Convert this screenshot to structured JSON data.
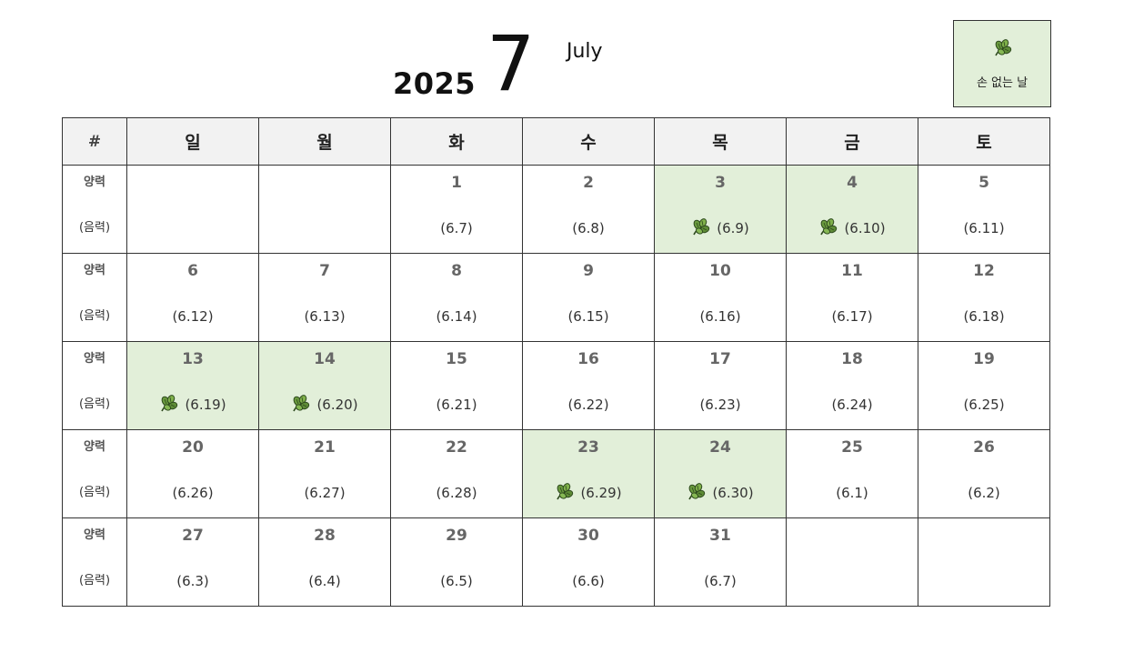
{
  "header": {
    "year": "2025",
    "month_number": "7",
    "month_name": "July"
  },
  "legend": {
    "icon": "leaf-icon",
    "label": "손 없는 날",
    "highlight_color": "#e2efd9"
  },
  "calendar": {
    "corner_label": "#",
    "weekdays": [
      "일",
      "월",
      "화",
      "수",
      "목",
      "금",
      "토"
    ],
    "solar_row_label": "양력",
    "lunar_row_label": "(음력)",
    "weeks": [
      [
        {
          "solar": "",
          "lunar": "",
          "son_eomneun_nal": false
        },
        {
          "solar": "",
          "lunar": "",
          "son_eomneun_nal": false
        },
        {
          "solar": "1",
          "lunar": "(6.7)",
          "son_eomneun_nal": false
        },
        {
          "solar": "2",
          "lunar": "(6.8)",
          "son_eomneun_nal": false
        },
        {
          "solar": "3",
          "lunar": "(6.9)",
          "son_eomneun_nal": true
        },
        {
          "solar": "4",
          "lunar": "(6.10)",
          "son_eomneun_nal": true
        },
        {
          "solar": "5",
          "lunar": "(6.11)",
          "son_eomneun_nal": false
        }
      ],
      [
        {
          "solar": "6",
          "lunar": "(6.12)",
          "son_eomneun_nal": false
        },
        {
          "solar": "7",
          "lunar": "(6.13)",
          "son_eomneun_nal": false
        },
        {
          "solar": "8",
          "lunar": "(6.14)",
          "son_eomneun_nal": false
        },
        {
          "solar": "9",
          "lunar": "(6.15)",
          "son_eomneun_nal": false
        },
        {
          "solar": "10",
          "lunar": "(6.16)",
          "son_eomneun_nal": false
        },
        {
          "solar": "11",
          "lunar": "(6.17)",
          "son_eomneun_nal": false
        },
        {
          "solar": "12",
          "lunar": "(6.18)",
          "son_eomneun_nal": false
        }
      ],
      [
        {
          "solar": "13",
          "lunar": "(6.19)",
          "son_eomneun_nal": true
        },
        {
          "solar": "14",
          "lunar": "(6.20)",
          "son_eomneun_nal": true
        },
        {
          "solar": "15",
          "lunar": "(6.21)",
          "son_eomneun_nal": false
        },
        {
          "solar": "16",
          "lunar": "(6.22)",
          "son_eomneun_nal": false
        },
        {
          "solar": "17",
          "lunar": "(6.23)",
          "son_eomneun_nal": false
        },
        {
          "solar": "18",
          "lunar": "(6.24)",
          "son_eomneun_nal": false
        },
        {
          "solar": "19",
          "lunar": "(6.25)",
          "son_eomneun_nal": false
        }
      ],
      [
        {
          "solar": "20",
          "lunar": "(6.26)",
          "son_eomneun_nal": false
        },
        {
          "solar": "21",
          "lunar": "(6.27)",
          "son_eomneun_nal": false
        },
        {
          "solar": "22",
          "lunar": "(6.28)",
          "son_eomneun_nal": false
        },
        {
          "solar": "23",
          "lunar": "(6.29)",
          "son_eomneun_nal": true
        },
        {
          "solar": "24",
          "lunar": "(6.30)",
          "son_eomneun_nal": true
        },
        {
          "solar": "25",
          "lunar": "(6.1)",
          "son_eomneun_nal": false
        },
        {
          "solar": "26",
          "lunar": "(6.2)",
          "son_eomneun_nal": false
        }
      ],
      [
        {
          "solar": "27",
          "lunar": "(6.3)",
          "son_eomneun_nal": false
        },
        {
          "solar": "28",
          "lunar": "(6.4)",
          "son_eomneun_nal": false
        },
        {
          "solar": "29",
          "lunar": "(6.5)",
          "son_eomneun_nal": false
        },
        {
          "solar": "30",
          "lunar": "(6.6)",
          "son_eomneun_nal": false
        },
        {
          "solar": "31",
          "lunar": "(6.7)",
          "son_eomneun_nal": false
        },
        {
          "solar": "",
          "lunar": "",
          "son_eomneun_nal": false
        },
        {
          "solar": "",
          "lunar": "",
          "son_eomneun_nal": false
        }
      ]
    ]
  }
}
